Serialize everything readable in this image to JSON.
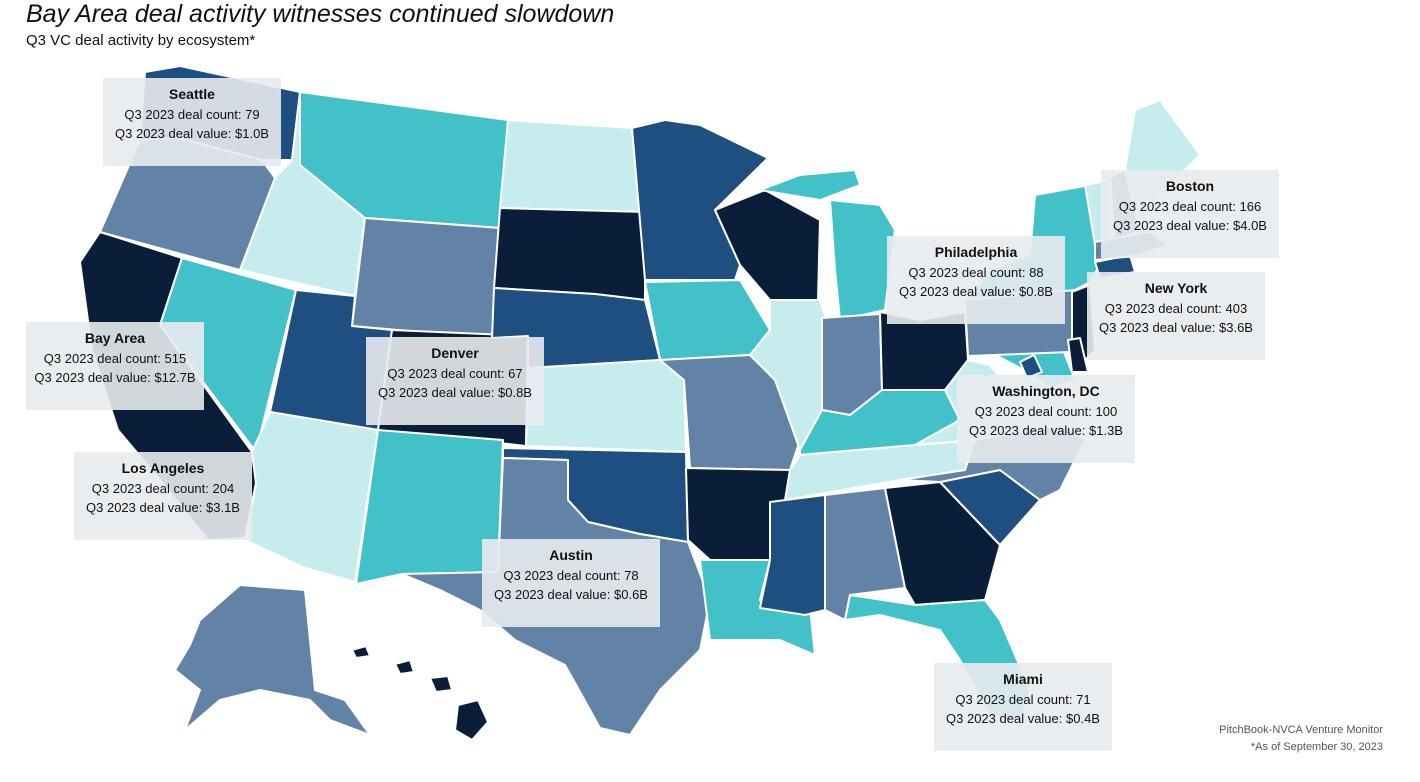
{
  "header": {
    "title": "Bay Area deal activity witnesses continued slowdown",
    "subtitle": "Q3 VC deal activity by ecosystem*"
  },
  "colors": {
    "darkest": "#0a1e3a",
    "dark_blue": "#1f4e80",
    "slate_blue": "#6283a6",
    "teal": "#42c2c8",
    "pale_aqua": "#c7ecee",
    "label_bg": "#e8ebee",
    "border": "#ffffff"
  },
  "callouts": [
    {
      "id": "seattle",
      "name": "Seattle",
      "count": "Q3 2023 deal count: 79",
      "value": "Q3 2023 deal value: $1.0B"
    },
    {
      "id": "bay-area",
      "name": "Bay Area",
      "count": "Q3 2023 deal count: 515",
      "value": "Q3 2023 deal value: $12.7B"
    },
    {
      "id": "los-angeles",
      "name": "Los Angeles",
      "count": "Q3 2023 deal count: 204",
      "value": "Q3 2023 deal value: $3.1B"
    },
    {
      "id": "denver",
      "name": "Denver",
      "count": "Q3 2023 deal count: 67",
      "value": "Q3 2023 deal value: $0.8B"
    },
    {
      "id": "austin",
      "name": "Austin",
      "count": "Q3 2023 deal count: 78",
      "value": "Q3 2023 deal value: $0.6B"
    },
    {
      "id": "philadelphia",
      "name": "Philadelphia",
      "count": "Q3 2023 deal count: 88",
      "value": "Q3 2023 deal value: $0.8B"
    },
    {
      "id": "boston",
      "name": "Boston",
      "count": "Q3 2023 deal count: 166",
      "value": "Q3 2023 deal value: $4.0B"
    },
    {
      "id": "new-york",
      "name": "New York",
      "count": "Q3 2023 deal count: 403",
      "value": "Q3 2023 deal value: $3.6B"
    },
    {
      "id": "washington-dc",
      "name": "Washington, DC",
      "count": "Q3 2023 deal count: 100",
      "value": "Q3 2023 deal value: $1.3B"
    },
    {
      "id": "miami",
      "name": "Miami",
      "count": "Q3 2023 deal count: 71",
      "value": "Q3 2023 deal value: $0.4B"
    }
  ],
  "footer": {
    "source": "PitchBook-NVCA Venture Monitor",
    "note": "*As of September 30, 2023"
  }
}
